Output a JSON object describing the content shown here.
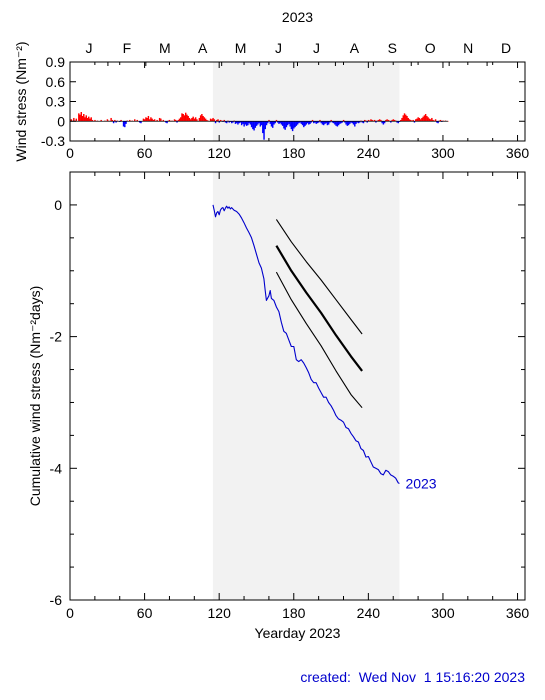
{
  "footer": {
    "created": "created:  Wed Nov  1 15:16:20 2023"
  },
  "colors": {
    "positive": "#ff0000",
    "negative": "#0000ff",
    "series": "#0000cc",
    "shade": "#f2f2f2",
    "band": "#000000"
  },
  "chart_data": [
    {
      "type": "bar",
      "title": "2023",
      "ylabel": "Wind stress (Nm⁻²)",
      "xlim": [
        0,
        366
      ],
      "ylim": [
        -0.3,
        0.9
      ],
      "yticks": [
        "0.9",
        "0.6",
        "0.3",
        "0",
        "-0.3"
      ],
      "xticks": [
        "0",
        "60",
        "120",
        "180",
        "240",
        "300",
        "360"
      ],
      "months": [
        "J",
        "F",
        "M",
        "A",
        "M",
        "J",
        "J",
        "A",
        "S",
        "O",
        "N",
        "D"
      ],
      "shaded_range": [
        115,
        265
      ],
      "grid": false,
      "daily": [
        [
          1,
          0.03
        ],
        [
          3,
          0.05
        ],
        [
          5,
          0.04
        ],
        [
          7,
          0.12
        ],
        [
          8,
          0.1
        ],
        [
          9,
          0.14
        ],
        [
          10,
          0.08
        ],
        [
          11,
          0.11
        ],
        [
          12,
          0.06
        ],
        [
          13,
          0.09
        ],
        [
          14,
          0.05
        ],
        [
          15,
          0.07
        ],
        [
          16,
          0.04
        ],
        [
          17,
          0.06
        ],
        [
          18,
          0.02
        ],
        [
          20,
          0.02
        ],
        [
          22,
          0.01
        ],
        [
          25,
          0.02
        ],
        [
          28,
          0.01
        ],
        [
          30,
          0.03
        ],
        [
          31,
          0.01
        ],
        [
          33,
          0.05
        ],
        [
          34,
          0.02
        ],
        [
          35,
          -0.03
        ],
        [
          36,
          0.02
        ],
        [
          37,
          -0.02
        ],
        [
          38,
          0.01
        ],
        [
          40,
          -0.01
        ],
        [
          41,
          0.02
        ],
        [
          43,
          -0.08
        ],
        [
          44,
          -0.09
        ],
        [
          45,
          -0.04
        ],
        [
          46,
          0.01
        ],
        [
          48,
          0.02
        ],
        [
          50,
          0.01
        ],
        [
          52,
          0.03
        ],
        [
          54,
          0.02
        ],
        [
          56,
          -0.02
        ],
        [
          57,
          -0.03
        ],
        [
          59,
          0.04
        ],
        [
          60,
          0.03
        ],
        [
          61,
          0.06
        ],
        [
          62,
          0.05
        ],
        [
          63,
          0.08
        ],
        [
          64,
          0.03
        ],
        [
          65,
          0.06
        ],
        [
          66,
          0.04
        ],
        [
          67,
          0.02
        ],
        [
          68,
          0.03
        ],
        [
          70,
          0.02
        ],
        [
          72,
          0.05
        ],
        [
          73,
          0.04
        ],
        [
          75,
          0.02
        ],
        [
          77,
          -0.02
        ],
        [
          78,
          -0.03
        ],
        [
          79,
          0.01
        ],
        [
          80,
          0.02
        ],
        [
          82,
          0.01
        ],
        [
          84,
          0.03
        ],
        [
          85,
          0.02
        ],
        [
          86,
          -0.02
        ],
        [
          87,
          0.02
        ],
        [
          88,
          0.04
        ],
        [
          89,
          0.06
        ],
        [
          90,
          0.12
        ],
        [
          91,
          0.11
        ],
        [
          92,
          0.09
        ],
        [
          93,
          0.13
        ],
        [
          94,
          0.1
        ],
        [
          95,
          0.08
        ],
        [
          96,
          0.05
        ],
        [
          97,
          0.03
        ],
        [
          98,
          0.05
        ],
        [
          99,
          0.07
        ],
        [
          100,
          0.04
        ],
        [
          101,
          0.06
        ],
        [
          102,
          0.03
        ],
        [
          104,
          0.05
        ],
        [
          105,
          0.09
        ],
        [
          106,
          0.11
        ],
        [
          107,
          0.08
        ],
        [
          108,
          0.06
        ],
        [
          109,
          0.04
        ],
        [
          110,
          0.02
        ],
        [
          111,
          0.01
        ],
        [
          113,
          0.04
        ],
        [
          114,
          0.03
        ],
        [
          115,
          0.05
        ],
        [
          116,
          0.03
        ],
        [
          117,
          -0.03
        ],
        [
          118,
          0.02
        ],
        [
          119,
          0.03
        ],
        [
          120,
          -0.02
        ],
        [
          121,
          0.02
        ],
        [
          122,
          0.01
        ],
        [
          123,
          -0.01
        ],
        [
          124,
          0.02
        ],
        [
          125,
          -0.02
        ],
        [
          126,
          -0.03
        ],
        [
          127,
          0.01
        ],
        [
          128,
          -0.02
        ],
        [
          129,
          -0.01
        ],
        [
          130,
          -0.03
        ],
        [
          131,
          -0.02
        ],
        [
          132,
          0.01
        ],
        [
          133,
          -0.04
        ],
        [
          134,
          -0.03
        ],
        [
          135,
          -0.05
        ],
        [
          136,
          -0.03
        ],
        [
          137,
          -0.02
        ],
        [
          138,
          -0.06
        ],
        [
          139,
          -0.04
        ],
        [
          140,
          -0.08
        ],
        [
          141,
          -0.05
        ],
        [
          142,
          -0.07
        ],
        [
          143,
          -0.06
        ],
        [
          144,
          -0.03
        ],
        [
          145,
          -0.05
        ],
        [
          146,
          -0.09
        ],
        [
          147,
          -0.12
        ],
        [
          148,
          -0.14
        ],
        [
          149,
          -0.1
        ],
        [
          150,
          -0.07
        ],
        [
          151,
          -0.05
        ],
        [
          152,
          -0.03
        ],
        [
          153,
          -0.08
        ],
        [
          154,
          -0.06
        ],
        [
          155,
          -0.18
        ],
        [
          156,
          -0.28
        ],
        [
          157,
          -0.12
        ],
        [
          158,
          -0.06
        ],
        [
          159,
          -0.03
        ],
        [
          160,
          0.02
        ],
        [
          161,
          -0.04
        ],
        [
          162,
          -0.08
        ],
        [
          163,
          -0.1
        ],
        [
          164,
          -0.05
        ],
        [
          165,
          -0.03
        ],
        [
          166,
          0.02
        ],
        [
          167,
          -0.02
        ],
        [
          168,
          -0.04
        ],
        [
          169,
          -0.03
        ],
        [
          170,
          -0.05
        ],
        [
          171,
          -0.07
        ],
        [
          172,
          -0.11
        ],
        [
          173,
          -0.13
        ],
        [
          174,
          -0.09
        ],
        [
          175,
          -0.06
        ],
        [
          176,
          -0.04
        ],
        [
          177,
          -0.08
        ],
        [
          178,
          -0.12
        ],
        [
          179,
          -0.15
        ],
        [
          180,
          -0.11
        ],
        [
          181,
          -0.09
        ],
        [
          182,
          -0.07
        ],
        [
          183,
          -0.05
        ],
        [
          184,
          -0.03
        ],
        [
          185,
          -0.02
        ],
        [
          186,
          -0.04
        ],
        [
          187,
          -0.06
        ],
        [
          188,
          -0.09
        ],
        [
          189,
          -0.07
        ],
        [
          190,
          -0.05
        ],
        [
          191,
          -0.03
        ],
        [
          192,
          -0.05
        ],
        [
          193,
          -0.04
        ],
        [
          194,
          -0.02
        ],
        [
          195,
          0.02
        ],
        [
          196,
          -0.03
        ],
        [
          197,
          -0.02
        ],
        [
          198,
          -0.04
        ],
        [
          199,
          -0.03
        ],
        [
          200,
          -0.02
        ],
        [
          201,
          0.02
        ],
        [
          202,
          -0.03
        ],
        [
          203,
          -0.05
        ],
        [
          204,
          -0.06
        ],
        [
          205,
          -0.04
        ],
        [
          206,
          -0.03
        ],
        [
          207,
          -0.06
        ],
        [
          208,
          -0.05
        ],
        [
          209,
          -0.02
        ],
        [
          210,
          0.02
        ],
        [
          211,
          -0.02
        ],
        [
          212,
          -0.03
        ],
        [
          213,
          -0.05
        ],
        [
          214,
          -0.07
        ],
        [
          215,
          -0.08
        ],
        [
          216,
          -0.06
        ],
        [
          217,
          -0.04
        ],
        [
          218,
          -0.03
        ],
        [
          219,
          -0.02
        ],
        [
          220,
          0.02
        ],
        [
          221,
          -0.02
        ],
        [
          222,
          -0.05
        ],
        [
          223,
          -0.07
        ],
        [
          224,
          -0.06
        ],
        [
          225,
          -0.04
        ],
        [
          226,
          -0.02
        ],
        [
          227,
          -0.03
        ],
        [
          228,
          -0.05
        ],
        [
          229,
          -0.08
        ],
        [
          230,
          -0.04
        ],
        [
          231,
          -0.02
        ],
        [
          232,
          -0.03
        ],
        [
          233,
          -0.02
        ],
        [
          234,
          0.01
        ],
        [
          235,
          -0.02
        ],
        [
          236,
          -0.03
        ],
        [
          237,
          0.02
        ],
        [
          238,
          0.01
        ],
        [
          239,
          -0.02
        ],
        [
          240,
          0.02
        ],
        [
          241,
          0.01
        ],
        [
          242,
          0.03
        ],
        [
          243,
          0.02
        ],
        [
          244,
          0.01
        ],
        [
          245,
          0.02
        ],
        [
          246,
          -0.02
        ],
        [
          247,
          0.01
        ],
        [
          248,
          0.02
        ],
        [
          249,
          0.03
        ],
        [
          250,
          0.02
        ],
        [
          251,
          -0.03
        ],
        [
          252,
          -0.05
        ],
        [
          253,
          -0.03
        ],
        [
          254,
          0.02
        ],
        [
          255,
          0.03
        ],
        [
          256,
          0.02
        ],
        [
          257,
          0.01
        ],
        [
          258,
          -0.02
        ],
        [
          259,
          0.02
        ],
        [
          260,
          0.03
        ],
        [
          261,
          0.02
        ],
        [
          262,
          0.01
        ],
        [
          263,
          -0.02
        ],
        [
          264,
          -0.03
        ],
        [
          265,
          -0.01
        ],
        [
          266,
          0.02
        ],
        [
          267,
          0.05
        ],
        [
          268,
          0.09
        ],
        [
          269,
          0.12
        ],
        [
          270,
          0.1
        ],
        [
          271,
          0.08
        ],
        [
          272,
          0.05
        ],
        [
          273,
          0.03
        ],
        [
          274,
          0.02
        ],
        [
          275,
          0.01
        ],
        [
          276,
          0.02
        ],
        [
          277,
          -0.02
        ],
        [
          278,
          0.03
        ],
        [
          279,
          0.04
        ],
        [
          280,
          0.06
        ],
        [
          281,
          0.05
        ],
        [
          282,
          0.03
        ],
        [
          283,
          0.05
        ],
        [
          284,
          0.07
        ],
        [
          285,
          0.09
        ],
        [
          286,
          0.11
        ],
        [
          287,
          0.08
        ],
        [
          288,
          0.06
        ],
        [
          289,
          0.04
        ],
        [
          290,
          0.03
        ],
        [
          291,
          0.05
        ],
        [
          292,
          0.02
        ],
        [
          293,
          0.01
        ],
        [
          294,
          0.03
        ],
        [
          295,
          -0.02
        ],
        [
          296,
          -0.03
        ],
        [
          297,
          0.01
        ],
        [
          298,
          0.02
        ],
        [
          299,
          -0.01
        ],
        [
          300,
          0.01
        ],
        [
          302,
          0.01
        ],
        [
          304,
          0.005
        ]
      ]
    },
    {
      "type": "line",
      "ylabel": "Cumulative wind stress (Nm⁻²days)",
      "xlabel": "Yearday 2023",
      "xlim": [
        0,
        366
      ],
      "ylim": [
        -6,
        0.5
      ],
      "yticks": [
        "0",
        "-2",
        "-4",
        "-6"
      ],
      "xticks": [
        "0",
        "60",
        "120",
        "180",
        "240",
        "300",
        "360"
      ],
      "shaded_range": [
        115,
        265
      ],
      "grid": false,
      "series": [
        {
          "name": "2023",
          "x": [
            115,
            116,
            117,
            118,
            119,
            120,
            121,
            122,
            123,
            124,
            125,
            126,
            127,
            128,
            129,
            130,
            132,
            134,
            136,
            138,
            140,
            142,
            144,
            146,
            148,
            150,
            152,
            154,
            156,
            157,
            158,
            160,
            161,
            162,
            164,
            166,
            168,
            170,
            172,
            174,
            176,
            178,
            180,
            182,
            184,
            186,
            188,
            190,
            192,
            194,
            196,
            198,
            200,
            202,
            204,
            206,
            208,
            210,
            212,
            214,
            216,
            218,
            220,
            222,
            224,
            226,
            228,
            230,
            232,
            234,
            236,
            238,
            240,
            242,
            244,
            246,
            248,
            250,
            252,
            254,
            256,
            258,
            260,
            262,
            264,
            265
          ],
          "y": [
            0.0,
            -0.08,
            -0.18,
            -0.12,
            -0.1,
            -0.15,
            -0.08,
            -0.05,
            -0.04,
            -0.09,
            -0.05,
            -0.02,
            -0.05,
            -0.03,
            -0.06,
            -0.04,
            -0.08,
            -0.1,
            -0.14,
            -0.2,
            -0.27,
            -0.35,
            -0.42,
            -0.5,
            -0.62,
            -0.75,
            -0.88,
            -0.96,
            -1.12,
            -1.3,
            -1.45,
            -1.38,
            -1.3,
            -1.42,
            -1.45,
            -1.55,
            -1.62,
            -1.78,
            -1.92,
            -1.95,
            -2.05,
            -2.15,
            -2.15,
            -2.35,
            -2.38,
            -2.35,
            -2.4,
            -2.47,
            -2.55,
            -2.65,
            -2.7,
            -2.7,
            -2.78,
            -2.85,
            -2.92,
            -2.92,
            -3.0,
            -3.05,
            -3.12,
            -3.2,
            -3.25,
            -3.27,
            -3.3,
            -3.38,
            -3.4,
            -3.47,
            -3.52,
            -3.58,
            -3.6,
            -3.7,
            -3.73,
            -3.83,
            -3.82,
            -3.9,
            -3.98,
            -4.0,
            -4.02,
            -4.08,
            -4.1,
            -4.03,
            -4.05,
            -4.1,
            -4.12,
            -4.15,
            -4.22,
            -4.23
          ]
        },
        {
          "name": "",
          "x": [
            166,
            178,
            190,
            202,
            214,
            226,
            235
          ],
          "y": [
            -0.62,
            -1.0,
            -1.33,
            -1.64,
            -1.98,
            -2.3,
            -2.52
          ]
        },
        {
          "name": "",
          "x": [
            166,
            178,
            190,
            202,
            214,
            226,
            235
          ],
          "y": [
            -0.22,
            -0.56,
            -0.86,
            -1.14,
            -1.44,
            -1.74,
            -1.96
          ]
        },
        {
          "name": "",
          "x": [
            166,
            178,
            190,
            202,
            214,
            226,
            235
          ],
          "y": [
            -1.02,
            -1.44,
            -1.8,
            -2.14,
            -2.52,
            -2.88,
            -3.08
          ]
        }
      ]
    }
  ]
}
